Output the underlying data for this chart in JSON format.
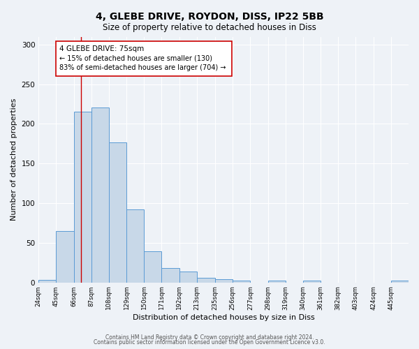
{
  "title": "4, GLEBE DRIVE, ROYDON, DISS, IP22 5BB",
  "subtitle": "Size of property relative to detached houses in Diss",
  "xlabel": "Distribution of detached houses by size in Diss",
  "ylabel": "Number of detached properties",
  "bin_labels": [
    "24sqm",
    "45sqm",
    "66sqm",
    "87sqm",
    "108sqm",
    "129sqm",
    "150sqm",
    "171sqm",
    "192sqm",
    "213sqm",
    "235sqm",
    "256sqm",
    "277sqm",
    "298sqm",
    "319sqm",
    "340sqm",
    "361sqm",
    "382sqm",
    "403sqm",
    "424sqm",
    "445sqm"
  ],
  "bar_values": [
    3,
    65,
    215,
    221,
    177,
    92,
    39,
    18,
    14,
    6,
    4,
    2,
    0,
    2,
    0,
    2,
    0,
    0,
    0,
    0,
    2
  ],
  "bin_edges": [
    24,
    45,
    66,
    87,
    108,
    129,
    150,
    171,
    192,
    213,
    235,
    256,
    277,
    298,
    319,
    340,
    361,
    382,
    403,
    424,
    445,
    466
  ],
  "bar_color": "#c8d8e8",
  "bar_edgecolor": "#5b9bd5",
  "marker_value": 75,
  "marker_color": "#cc0000",
  "annotation_title": "4 GLEBE DRIVE: 75sqm",
  "annotation_line1": "← 15% of detached houses are smaller (130)",
  "annotation_line2": "83% of semi-detached houses are larger (704) →",
  "annotation_box_color": "#cc0000",
  "ylim": [
    0,
    310
  ],
  "yticks": [
    0,
    50,
    100,
    150,
    200,
    250,
    300
  ],
  "footer1": "Contains HM Land Registry data © Crown copyright and database right 2024.",
  "footer2": "Contains public sector information licensed under the Open Government Licence v3.0.",
  "bg_color": "#eef2f7",
  "plot_bg_color": "#eef2f7"
}
